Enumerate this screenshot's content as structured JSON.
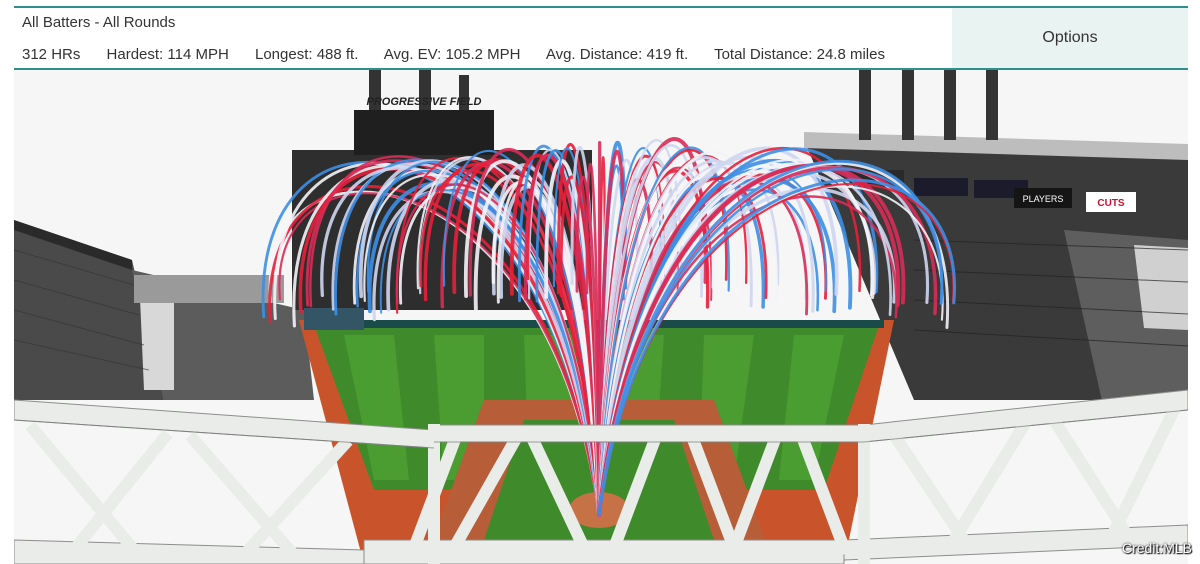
{
  "header": {
    "title": "All Batters - All Rounds",
    "stats": {
      "hrs": "312 HRs",
      "hardest": "Hardest: 114 MPH",
      "longest": "Longest: 488 ft.",
      "avg_ev": "Avg. EV: 105.2 MPH",
      "avg_distance": "Avg. Distance: 419 ft.",
      "total_distance": "Total Distance: 24.8 miles"
    },
    "options_label": "Options"
  },
  "scene": {
    "stadium_sign": "PROGRESSIVE FIELD",
    "board_players": "PLAYERS",
    "board_cuts": "CUTS",
    "arc_colors": [
      "#e8203a",
      "#3d8fe6",
      "#f4f4f8",
      "#cfd6ef",
      "#d92c57"
    ]
  },
  "credit": "Credit:MLB"
}
